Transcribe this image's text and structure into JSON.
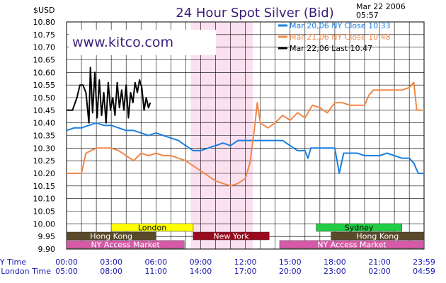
{
  "header": {
    "title": "24 Hour Spot Silver (Bid)",
    "unit": "$USD",
    "date": "Mar 22 2006",
    "time": "05:57"
  },
  "watermark": "www.kitco.com",
  "row_labels": {
    "ny": "NY Time",
    "london": "London Time"
  },
  "colors": {
    "mar20": "#1a7fe0",
    "mar21": "#f0884a",
    "mar22": "#000000",
    "title": "#3a1e7a",
    "shade": "#fbe0ef",
    "london": "#ffff00",
    "hongkong": "#5a4a2a",
    "newyork": "#9a0a1e",
    "sydney": "#22cc44",
    "nyaccess": "#d65aa8"
  },
  "chart_data": {
    "type": "line",
    "title": "24 Hour Spot Silver (Bid)",
    "ylabel": "$USD",
    "ylim": [
      9.9,
      10.8
    ],
    "ny_ticks": [
      "00:00",
      "03:00",
      "06:00",
      "09:00",
      "12:00",
      "15:00",
      "18:00",
      "21:00",
      "23:59"
    ],
    "london_ticks": [
      "05:00",
      "08:00",
      "11:00",
      "14:00",
      "17:00",
      "20:00",
      "23:00",
      "02:00",
      "04:59"
    ],
    "y_ticks": [
      "10.80",
      "10.75",
      "10.70",
      "10.65",
      "10.60",
      "10.55",
      "10.50",
      "10.45",
      "10.40",
      "10.35",
      "10.30",
      "10.25",
      "10.20",
      "10.15",
      "10.10",
      "10.05",
      "10.00",
      "9.95",
      "9.90"
    ],
    "shaded_ny_hours": [
      8.33,
      12.5
    ],
    "legend": [
      {
        "text": "Mar 20,06  NY Close 10.33",
        "color_key": "mar20"
      },
      {
        "text": "Mar 21,06  NY Close 10.48",
        "color_key": "mar21"
      },
      {
        "text": "Mar 22,06  Last 10.47",
        "color_key": "mar22"
      }
    ],
    "series": [
      {
        "name": "Mar 20,06",
        "color_key": "mar20",
        "points": [
          [
            0,
            10.37
          ],
          [
            0.5,
            10.38
          ],
          [
            1,
            10.38
          ],
          [
            1.5,
            10.39
          ],
          [
            2,
            10.4
          ],
          [
            2.5,
            10.39
          ],
          [
            3,
            10.39
          ],
          [
            3.5,
            10.38
          ],
          [
            4,
            10.37
          ],
          [
            4.5,
            10.37
          ],
          [
            5,
            10.36
          ],
          [
            5.5,
            10.35
          ],
          [
            6,
            10.36
          ],
          [
            6.5,
            10.35
          ],
          [
            7,
            10.34
          ],
          [
            7.5,
            10.33
          ],
          [
            8,
            10.31
          ],
          [
            8.5,
            10.29
          ],
          [
            9,
            10.29
          ],
          [
            9.5,
            10.3
          ],
          [
            10,
            10.31
          ],
          [
            10.5,
            10.32
          ],
          [
            11,
            10.31
          ],
          [
            11.5,
            10.33
          ],
          [
            12,
            10.33
          ],
          [
            12.5,
            10.33
          ],
          [
            13,
            10.33
          ],
          [
            13.5,
            10.33
          ],
          [
            14,
            10.33
          ],
          [
            14.5,
            10.33
          ],
          [
            15,
            10.31
          ],
          [
            15.5,
            10.29
          ],
          [
            16,
            10.29
          ],
          [
            16.2,
            10.26
          ],
          [
            16.4,
            10.3
          ],
          [
            17,
            10.3
          ],
          [
            18,
            10.3
          ],
          [
            18.3,
            10.2
          ],
          [
            18.6,
            10.28
          ],
          [
            19,
            10.28
          ],
          [
            19.5,
            10.28
          ],
          [
            20,
            10.27
          ],
          [
            20.5,
            10.27
          ],
          [
            21,
            10.27
          ],
          [
            21.5,
            10.28
          ],
          [
            22,
            10.27
          ],
          [
            22.5,
            10.26
          ],
          [
            23,
            10.26
          ],
          [
            23.3,
            10.24
          ],
          [
            23.6,
            10.2
          ],
          [
            23.99,
            10.2
          ]
        ]
      },
      {
        "name": "Mar 21,06",
        "color_key": "mar21",
        "points": [
          [
            0,
            10.2
          ],
          [
            0.5,
            10.2
          ],
          [
            1,
            10.2
          ],
          [
            1.3,
            10.28
          ],
          [
            2,
            10.3
          ],
          [
            2.5,
            10.3
          ],
          [
            3,
            10.3
          ],
          [
            3.5,
            10.29
          ],
          [
            4,
            10.27
          ],
          [
            4.5,
            10.25
          ],
          [
            5,
            10.28
          ],
          [
            5.5,
            10.27
          ],
          [
            6,
            10.28
          ],
          [
            6.5,
            10.27
          ],
          [
            7,
            10.27
          ],
          [
            7.5,
            10.26
          ],
          [
            8,
            10.25
          ],
          [
            8.5,
            10.23
          ],
          [
            9,
            10.21
          ],
          [
            9.5,
            10.19
          ],
          [
            10,
            10.17
          ],
          [
            10.5,
            10.16
          ],
          [
            11,
            10.15
          ],
          [
            11.5,
            10.16
          ],
          [
            12,
            10.18
          ],
          [
            12.3,
            10.24
          ],
          [
            12.6,
            10.37
          ],
          [
            12.8,
            10.48
          ],
          [
            13,
            10.4
          ],
          [
            13.5,
            10.38
          ],
          [
            14,
            10.4
          ],
          [
            14.5,
            10.43
          ],
          [
            15,
            10.41
          ],
          [
            15.5,
            10.44
          ],
          [
            16,
            10.42
          ],
          [
            16.5,
            10.47
          ],
          [
            17,
            10.46
          ],
          [
            17.5,
            10.44
          ],
          [
            18,
            10.48
          ],
          [
            18.5,
            10.48
          ],
          [
            19,
            10.47
          ],
          [
            19.5,
            10.47
          ],
          [
            20,
            10.47
          ],
          [
            20.3,
            10.51
          ],
          [
            20.6,
            10.53
          ],
          [
            21,
            10.53
          ],
          [
            21.5,
            10.53
          ],
          [
            22,
            10.53
          ],
          [
            22.5,
            10.53
          ],
          [
            23,
            10.54
          ],
          [
            23.3,
            10.56
          ],
          [
            23.5,
            10.45
          ],
          [
            23.99,
            10.45
          ]
        ]
      },
      {
        "name": "Mar 22,06",
        "color_key": "mar22",
        "points": [
          [
            0,
            10.45
          ],
          [
            0.4,
            10.45
          ],
          [
            0.7,
            10.5
          ],
          [
            0.9,
            10.55
          ],
          [
            1.1,
            10.55
          ],
          [
            1.3,
            10.52
          ],
          [
            1.5,
            10.4
          ],
          [
            1.6,
            10.62
          ],
          [
            1.75,
            10.44
          ],
          [
            1.9,
            10.6
          ],
          [
            2.05,
            10.42
          ],
          [
            2.2,
            10.57
          ],
          [
            2.35,
            10.43
          ],
          [
            2.5,
            10.52
          ],
          [
            2.65,
            10.4
          ],
          [
            2.8,
            10.56
          ],
          [
            2.95,
            10.45
          ],
          [
            3.1,
            10.5
          ],
          [
            3.25,
            10.43
          ],
          [
            3.4,
            10.56
          ],
          [
            3.55,
            10.46
          ],
          [
            3.7,
            10.53
          ],
          [
            3.85,
            10.45
          ],
          [
            4.0,
            10.55
          ],
          [
            4.15,
            10.42
          ],
          [
            4.3,
            10.52
          ],
          [
            4.45,
            10.48
          ],
          [
            4.6,
            10.56
          ],
          [
            4.75,
            10.52
          ],
          [
            4.9,
            10.57
          ],
          [
            5.05,
            10.54
          ],
          [
            5.2,
            10.45
          ],
          [
            5.35,
            10.5
          ],
          [
            5.5,
            10.46
          ],
          [
            5.62,
            10.48
          ]
        ]
      }
    ],
    "sessions": [
      {
        "label": "London",
        "start": 3,
        "end": 8.5,
        "row": 0,
        "color_key": "london"
      },
      {
        "label": "Sydney",
        "start": 16.75,
        "end": 22.5,
        "row": 0,
        "color_key": "sydney"
      },
      {
        "label": "Hong Kong",
        "start": 0,
        "end": 6,
        "row": 1,
        "color_key": "hongkong"
      },
      {
        "label": "New York",
        "start": 8.5,
        "end": 13.6,
        "row": 1,
        "color_key": "newyork"
      },
      {
        "label": "Hong Kong",
        "start": 17.75,
        "end": 23.99,
        "row": 1,
        "color_key": "hongkong"
      },
      {
        "label": "NY Access Market",
        "start": 0,
        "end": 7.9,
        "row": 2,
        "color_key": "nyaccess"
      },
      {
        "label": "NY Access Market",
        "start": 14.3,
        "end": 23.99,
        "row": 2,
        "color_key": "nyaccess"
      }
    ]
  }
}
